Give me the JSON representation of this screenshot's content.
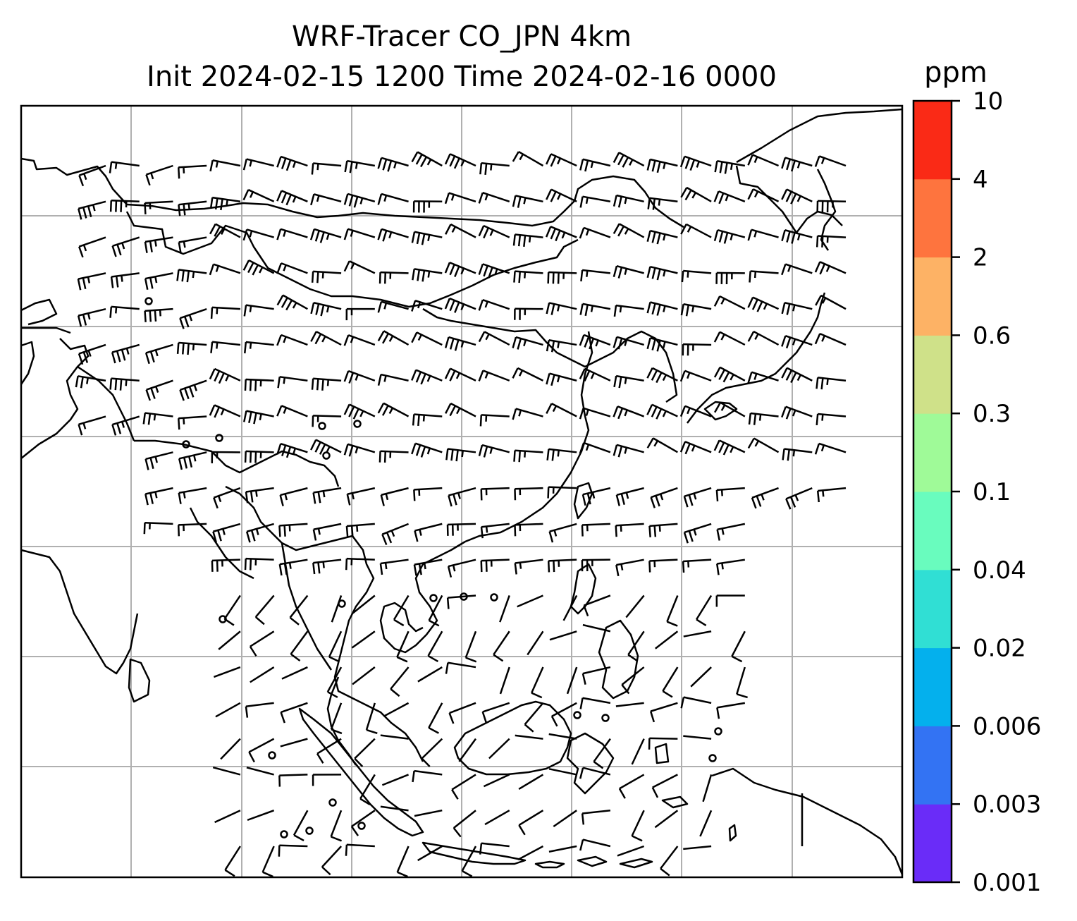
{
  "title": {
    "line1": "WRF-Tracer CO_JPN 4km",
    "line2": "Init 2024-02-15 1200 Time 2024-02-16 0000"
  },
  "colorbar": {
    "unit": "ppm",
    "levels": [
      "0.001",
      "0.003",
      "0.006",
      "0.02",
      "0.04",
      "0.1",
      "0.3",
      "0.6",
      "2",
      "4",
      "10"
    ],
    "colors": [
      "#6a2cf8",
      "#3373f3",
      "#04b0ed",
      "#30dfd4",
      "#69fcbe",
      "#9ffa98",
      "#cfe189",
      "#fdb265",
      "#fe743e",
      "#fa2a16"
    ]
  },
  "map": {
    "region": "East Asia / Southeast Asia",
    "gridlines": true,
    "coastline_color": "#000000",
    "grid_color": "#b0b0b0"
  }
}
